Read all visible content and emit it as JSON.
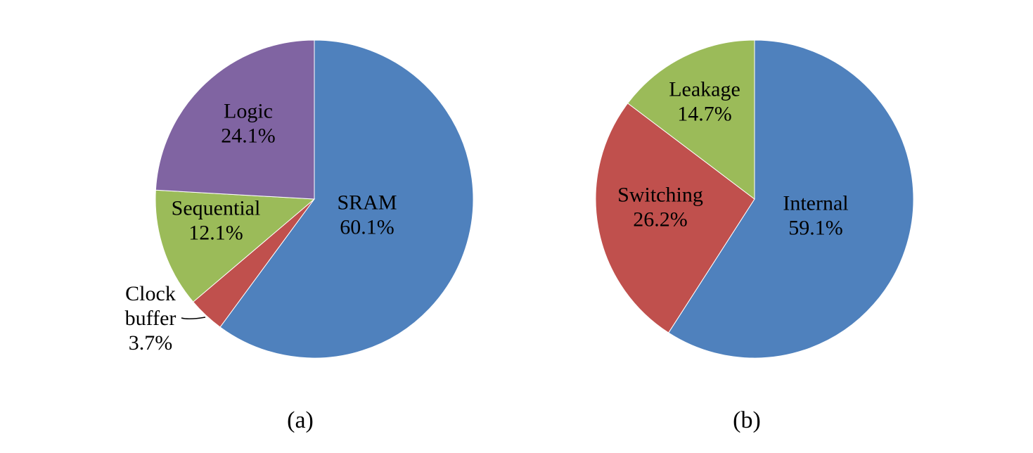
{
  "chart_data": [
    {
      "type": "pie",
      "caption": "(a)",
      "categories": [
        "SRAM",
        "Clock buffer",
        "Sequential",
        "Logic"
      ],
      "values": [
        60.1,
        3.7,
        12.1,
        24.1
      ],
      "value_labels": [
        "60.1%",
        "3.7%",
        "12.1%",
        "24.1%"
      ],
      "colors": [
        "#4F81BD",
        "#C0504D",
        "#9BBB59",
        "#8064A2"
      ],
      "label_lines": [
        [
          "SRAM",
          "60.1%"
        ],
        [
          "Clock",
          "buffer",
          "3.7%"
        ],
        [
          "Sequential",
          "12.1%"
        ],
        [
          "Logic",
          "24.1%"
        ]
      ]
    },
    {
      "type": "pie",
      "caption": "(b)",
      "categories": [
        "Internal",
        "Switching",
        "Leakage"
      ],
      "values": [
        59.1,
        26.2,
        14.7
      ],
      "value_labels": [
        "59.1%",
        "26.2%",
        "14.7%"
      ],
      "colors": [
        "#4F81BD",
        "#C0504D",
        "#9BBB59"
      ],
      "label_lines": [
        [
          "Internal",
          "59.1%"
        ],
        [
          "Switching",
          "26.2%"
        ],
        [
          "Leakage",
          "14.7%"
        ]
      ]
    }
  ]
}
